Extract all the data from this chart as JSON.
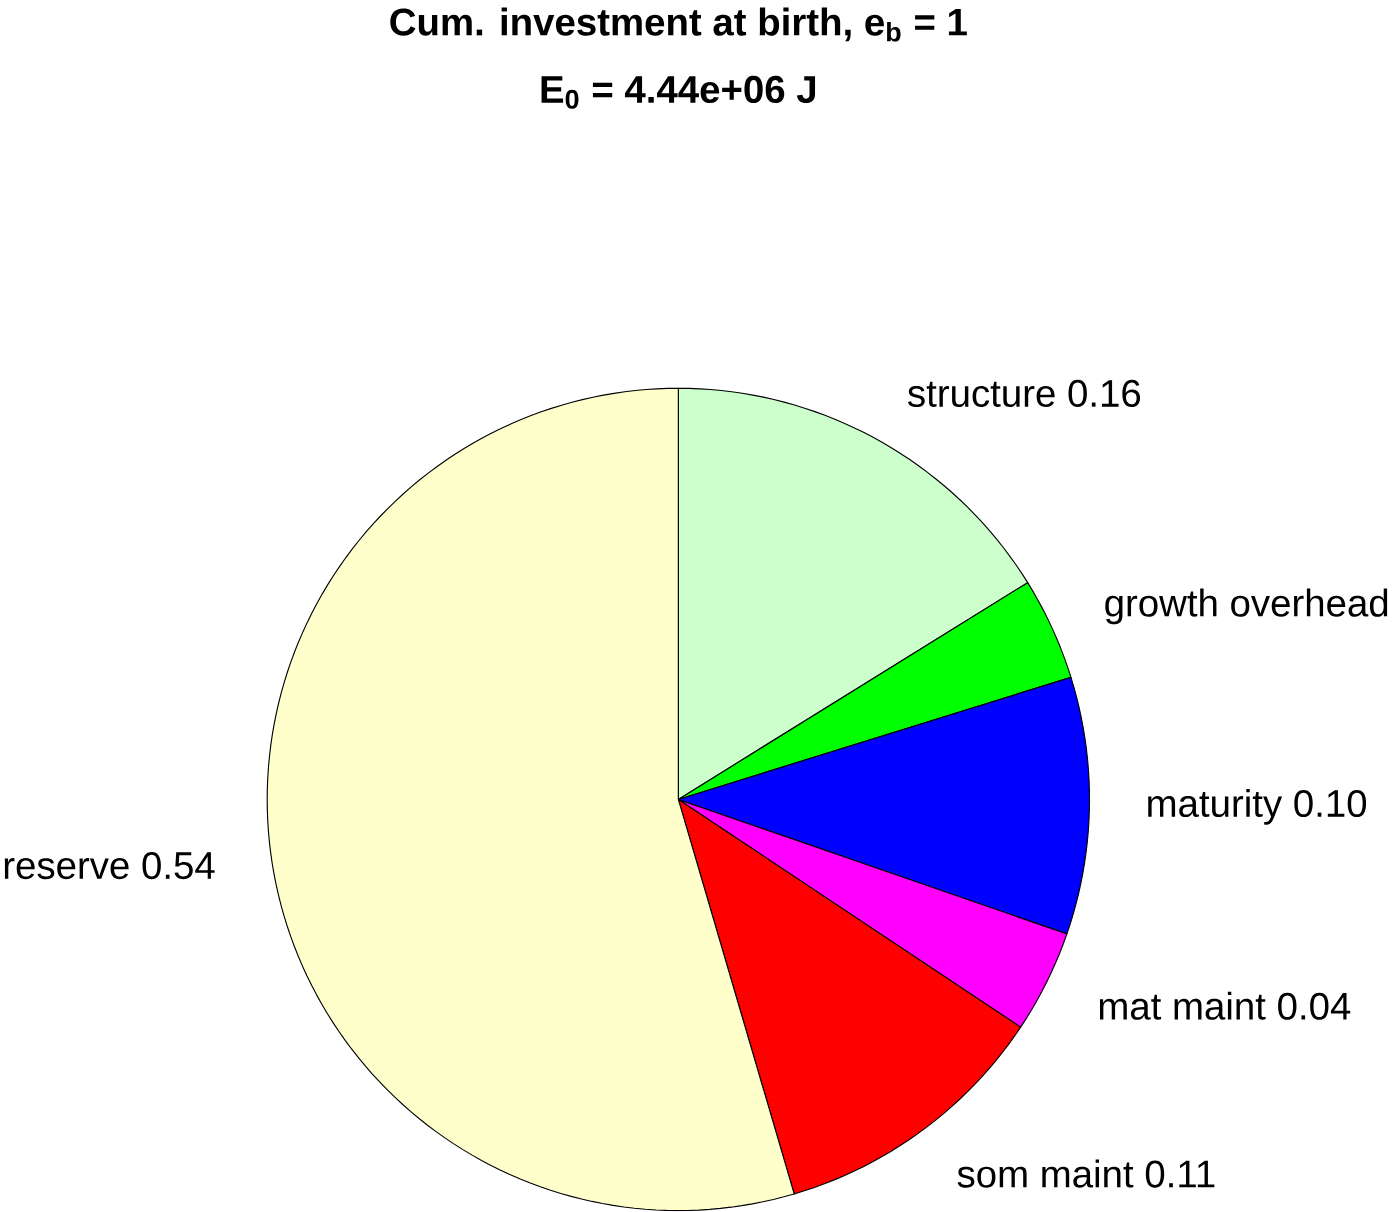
{
  "chart_data": {
    "type": "pie",
    "title": "Cum. investment at birth, e$_{b}$ = 1",
    "subtitle": "E$_{0}$ = 4.44e+06 J",
    "categories": [
      "structure",
      "growth overhead",
      "maturity",
      "mat maint",
      "som maint",
      "reserve"
    ],
    "values": [
      0.16,
      0.04,
      0.1,
      0.04,
      0.11,
      0.54
    ],
    "value_labels": [
      "0.16",
      null,
      "0.10",
      "0.04",
      "0.11",
      "0.54"
    ],
    "colors": [
      "#ccffcc",
      "#00ff00",
      "#0000ff",
      "#ff00ff",
      "#ff0000",
      "#ffffcc"
    ]
  }
}
